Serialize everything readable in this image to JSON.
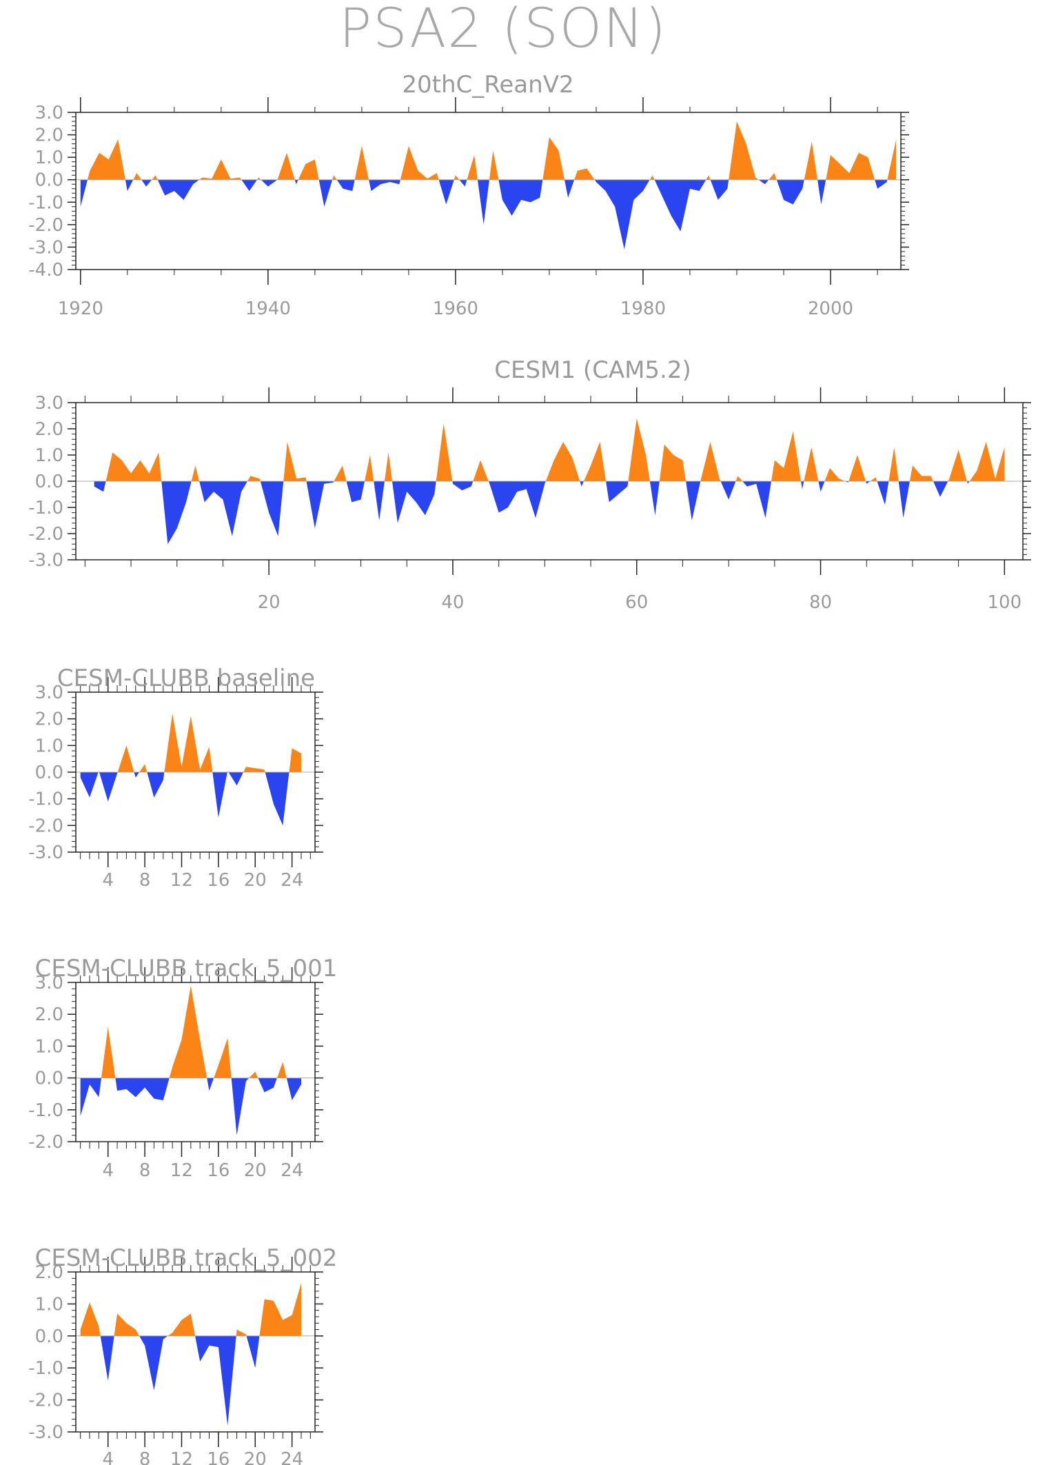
{
  "title": "PSA2 (SON)",
  "colors": {
    "positive": "#fa8416",
    "negative": "#2a45f0",
    "axis": "#222222",
    "text": "#9a9a9a"
  },
  "chart_data": [
    {
      "type": "area",
      "title": "20thC_ReanV2",
      "x_start": 1920,
      "ylim": [
        -4.0,
        3.0
      ],
      "xlim": [
        1919.5,
        2007.5
      ],
      "yticks": [
        "3.0",
        "2.0",
        "1.0",
        "0.0",
        "-1.0",
        "-2.0",
        "-3.0",
        "-4.0"
      ],
      "xticks": [
        "1920",
        "1940",
        "1960",
        "1980",
        "2000"
      ],
      "values": [
        -1.2,
        0.4,
        1.2,
        0.9,
        1.8,
        -0.5,
        0.3,
        -0.3,
        0.2,
        -0.7,
        -0.5,
        -0.9,
        -0.2,
        0.1,
        0.05,
        0.9,
        0.05,
        0.1,
        -0.5,
        0.1,
        -0.3,
        0.0,
        1.2,
        -0.2,
        0.7,
        0.9,
        -1.2,
        0.2,
        -0.4,
        -0.5,
        1.5,
        -0.5,
        -0.2,
        -0.1,
        -0.2,
        1.5,
        0.4,
        0.05,
        0.3,
        -1.1,
        0.2,
        -0.3,
        1.1,
        -2.0,
        1.3,
        -0.9,
        -1.6,
        -0.9,
        -1.0,
        -0.8,
        1.9,
        1.3,
        -0.8,
        0.4,
        0.5,
        -0.1,
        -0.5,
        -1.2,
        -3.1,
        -0.9,
        -0.5,
        0.2,
        -0.7,
        -1.6,
        -2.3,
        -0.4,
        -0.5,
        0.2,
        -0.9,
        -0.4,
        2.6,
        1.6,
        0.1,
        -0.2,
        0.3,
        -0.9,
        -1.1,
        -0.4,
        1.7,
        -1.1,
        1.1,
        0.7,
        0.3,
        1.2,
        1.0,
        -0.4,
        -0.1,
        1.8
      ]
    },
    {
      "type": "area",
      "title": "CESM1 (CAM5.2)",
      "x_start": 1,
      "ylim": [
        -3.0,
        3.0
      ],
      "xlim": [
        -1,
        102
      ],
      "yticks": [
        "3.0",
        "2.0",
        "1.0",
        "0.0",
        "-1.0",
        "-2.0",
        "-3.0"
      ],
      "xticks": [
        "20",
        "40",
        "60",
        "80",
        "100"
      ],
      "values": [
        -0.2,
        -0.4,
        1.1,
        0.8,
        0.3,
        0.8,
        0.3,
        1.1,
        -2.4,
        -1.8,
        -0.8,
        0.6,
        -0.8,
        -0.4,
        -0.7,
        -2.1,
        -0.4,
        0.2,
        0.1,
        -1.2,
        -2.1,
        1.5,
        0.1,
        0.15,
        -1.8,
        -0.1,
        -0.05,
        0.6,
        -0.8,
        -0.7,
        1.0,
        -1.5,
        1.1,
        -1.6,
        -0.4,
        -0.8,
        -1.3,
        -0.5,
        2.2,
        -0.1,
        -0.35,
        -0.2,
        0.8,
        -0.1,
        -1.2,
        -1.0,
        -0.4,
        -0.3,
        -1.4,
        -0.1,
        0.8,
        1.5,
        0.9,
        -0.2,
        0.6,
        1.5,
        -0.8,
        -0.5,
        -0.2,
        2.4,
        1.0,
        -1.3,
        1.4,
        1.0,
        0.8,
        -1.5,
        0.1,
        1.5,
        0.1,
        -0.7,
        0.2,
        -0.2,
        -0.1,
        -1.4,
        0.8,
        0.5,
        1.9,
        -0.3,
        1.3,
        -0.4,
        0.5,
        0.1,
        -0.05,
        1.0,
        -0.1,
        0.15,
        -0.9,
        1.3,
        -1.4,
        0.6,
        0.2,
        0.2,
        -0.6,
        0.1,
        1.2,
        -0.1,
        0.4,
        1.5,
        0.1,
        1.3
      ]
    },
    {
      "type": "area",
      "title": "CESM-CLUBB baseline",
      "x_start": 1,
      "ylim": [
        -3.0,
        3.0
      ],
      "xlim": [
        0.5,
        26.5
      ],
      "yticks": [
        "3.0",
        "2.0",
        "1.0",
        "0.0",
        "-1.0",
        "-2.0",
        "-3.0"
      ],
      "xticks": [
        "4",
        "8",
        "12",
        "16",
        "20",
        "24"
      ],
      "values": [
        -0.2,
        -0.95,
        0.05,
        -1.1,
        -0.05,
        1.0,
        -0.2,
        0.3,
        -0.95,
        -0.3,
        2.2,
        0.2,
        2.1,
        0.1,
        0.95,
        -1.7,
        0.05,
        -0.5,
        0.2,
        0.15,
        0.1,
        -1.2,
        -2.0,
        0.9,
        0.7
      ]
    },
    {
      "type": "area",
      "title": "CESM-CLUBB track_5_001",
      "x_start": 1,
      "ylim": [
        -2.0,
        3.0
      ],
      "xlim": [
        0.5,
        26.5
      ],
      "yticks": [
        "3.0",
        "2.0",
        "1.0",
        "0.0",
        "-1.0",
        "-2.0"
      ],
      "xticks": [
        "4",
        "8",
        "12",
        "16",
        "20",
        "24"
      ],
      "values": [
        -1.2,
        -0.2,
        -0.6,
        1.6,
        -0.4,
        -0.35,
        -0.6,
        -0.3,
        -0.65,
        -0.7,
        0.35,
        1.2,
        2.9,
        1.2,
        -0.4,
        0.4,
        1.25,
        -1.8,
        -0.1,
        0.2,
        -0.45,
        -0.3,
        0.5,
        -0.7,
        -0.2
      ]
    },
    {
      "type": "area",
      "title": "CESM-CLUBB track_5_002",
      "x_start": 1,
      "ylim": [
        -3.0,
        2.0
      ],
      "xlim": [
        0.5,
        26.5
      ],
      "yticks": [
        "2.0",
        "1.0",
        "0.0",
        "-1.0",
        "-2.0",
        "-3.0"
      ],
      "xticks": [
        "4",
        "8",
        "12",
        "16",
        "20",
        "24"
      ],
      "values": [
        0.2,
        1.05,
        0.3,
        -1.4,
        0.7,
        0.4,
        0.2,
        -0.3,
        -1.7,
        -0.1,
        0.1,
        0.5,
        0.7,
        -0.8,
        -0.3,
        -0.35,
        -2.8,
        0.2,
        0.05,
        -1.0,
        1.15,
        1.1,
        0.5,
        0.65,
        1.65
      ]
    }
  ]
}
